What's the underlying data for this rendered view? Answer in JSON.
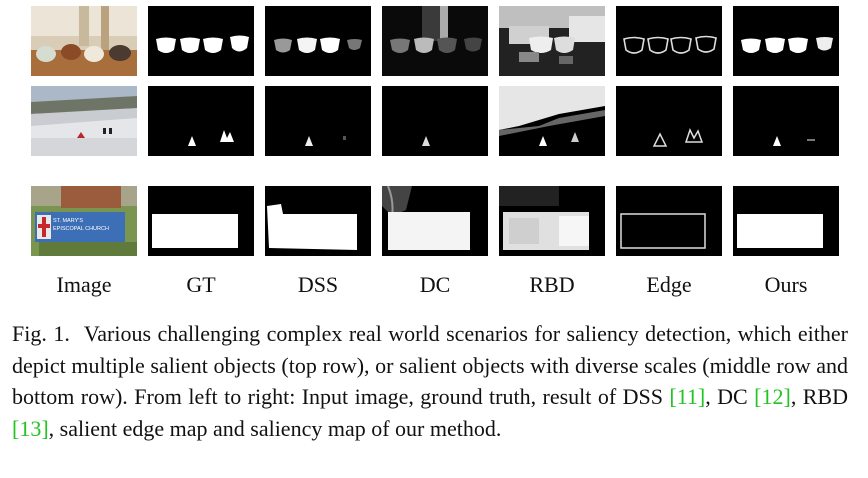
{
  "columns": [
    "Image",
    "GT",
    "DSS",
    "DC",
    "RBD",
    "Edge",
    "Ours"
  ],
  "rows": [
    {
      "row_id": "cups"
    },
    {
      "row_id": "snow"
    },
    {
      "row_id": "sign"
    }
  ],
  "sign_text": "ST. MARY'S EPISCOPAL CHURCH",
  "caption": {
    "fig": "Fig. 1.",
    "text1": "Various challenging complex real world scenarios for saliency detection, which either depict multiple salient objects (top row), or salient objects with diverse scales (middle row and bottom row). From left to right: Input image, ground truth, result of DSS ",
    "ref_dss": "[11]",
    "text2": ", DC ",
    "ref_dc": "[12]",
    "text3": ", RBD ",
    "ref_rbd": "[13]",
    "text4": ", salient edge map and saliency map of our method."
  },
  "colors": {
    "citation": "#22c322",
    "mask_bg": "#000000",
    "mask_fg": "#ffffff"
  }
}
